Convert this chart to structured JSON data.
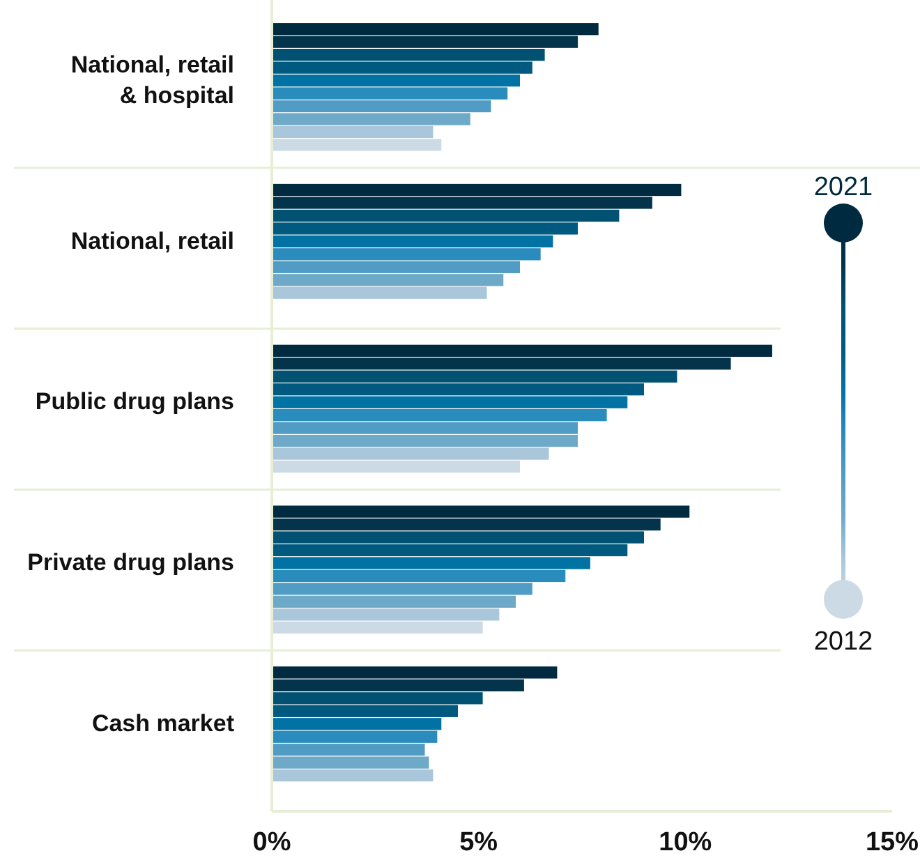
{
  "chart_data": {
    "type": "bar",
    "orientation": "horizontal",
    "categories": [
      "National, retail & hospital",
      "National, retail",
      "Public drug plans",
      "Private drug plans",
      "Cash market"
    ],
    "xlim": [
      0,
      15
    ],
    "xticks": [
      {
        "value": 0,
        "label": "0%"
      },
      {
        "value": 5,
        "label": "5%"
      },
      {
        "value": 10,
        "label": "10%"
      },
      {
        "value": 15,
        "label": "15%"
      }
    ],
    "legend": "right",
    "grid": false,
    "series": [
      {
        "name": "2021",
        "color": "#002a3f",
        "values": [
          7.9,
          9.9,
          12.1,
          10.1,
          6.9
        ]
      },
      {
        "color": "#03344c",
        "values": [
          7.4,
          9.2,
          11.1,
          9.4,
          6.1
        ]
      },
      {
        "color": "#005172",
        "values": [
          6.6,
          8.4,
          9.8,
          9.0,
          5.1
        ]
      },
      {
        "color": "#005a80",
        "values": [
          6.3,
          7.4,
          9.0,
          8.6,
          4.5
        ]
      },
      {
        "color": "#0072a3",
        "values": [
          6.0,
          6.8,
          8.6,
          7.7,
          4.1
        ]
      },
      {
        "color": "#2a8bbd",
        "values": [
          5.7,
          6.5,
          8.1,
          7.1,
          4.0
        ]
      },
      {
        "color": "#519cc4",
        "values": [
          5.3,
          6.0,
          7.4,
          6.3,
          3.7
        ]
      },
      {
        "color": "#6fa9c8",
        "values": [
          4.8,
          5.6,
          7.4,
          5.9,
          3.8
        ]
      },
      {
        "color": "#a9c6da",
        "values": [
          3.9,
          5.2,
          6.7,
          5.5,
          3.9
        ]
      },
      {
        "name": "2012",
        "color": "#ccdae5",
        "values": [
          4.1,
          null,
          6.0,
          5.1,
          null
        ]
      }
    ]
  }
}
